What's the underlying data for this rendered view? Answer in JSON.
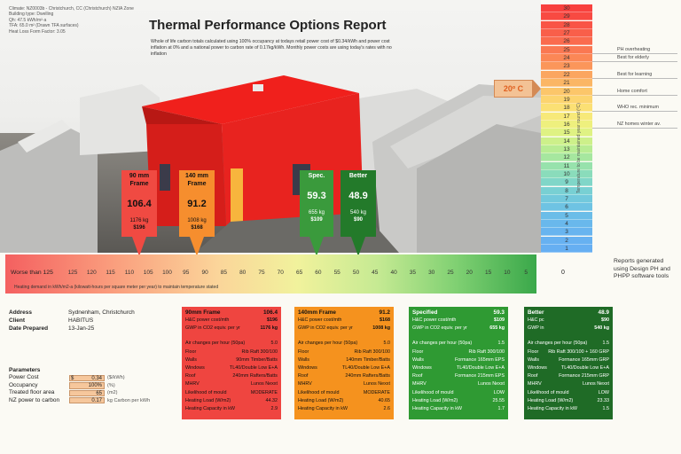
{
  "meta_lines": [
    "Climate: NZ0003b - Christchurch, CC (Christchurch) NZIA Zone",
    "Building type: Dwelling",
    "Qh: 47.5 kWh/m²·a",
    "TFA: 65.0 m² (Drawn TFA surfaces)",
    "Heat Loss Form Factor: 3.05"
  ],
  "title": "Thermal Performance Options Report",
  "subtitle": "Whole of life carbon totals calculated using 100% occupancy at todays retail power cost of $0.34/kWh and power cost inflation at 0% and a national power to carbon rate of 0.17kg/kWh. Monthly power costs are using today's rates with no inflation",
  "options": [
    {
      "name": "90 mm Frame",
      "value": "106.4",
      "carbon": "1176 kg",
      "cost": "$196",
      "color": "#f04a42",
      "arrow": "#f04a42",
      "bar_x": 110
    },
    {
      "name": "140 mm Frame",
      "value": "91.2",
      "carbon": "1008 kg",
      "cost": "$168",
      "color": "#f68e2e",
      "arrow": "#f68e2e",
      "bar_x": 95
    },
    {
      "name": "Spec.",
      "value": "59.3",
      "carbon": "655 kg",
      "cost": "$109",
      "color": "#3a9a3c",
      "arrow": "#3a9a3c",
      "bar_x": 60
    },
    {
      "name": "Better",
      "value": "48.9",
      "carbon": "540 kg",
      "cost": "$90",
      "color": "#237a2a",
      "arrow": "#237a2a",
      "bar_x": 50
    }
  ],
  "demand_bar": {
    "first_label": "Worse than 125",
    "ticks": [
      "125",
      "120",
      "115",
      "110",
      "105",
      "100",
      "95",
      "90",
      "85",
      "80",
      "75",
      "70",
      "65",
      "60",
      "55",
      "50",
      "45",
      "40",
      "35",
      "30",
      "25",
      "20",
      "15",
      "10",
      "5"
    ],
    "zero": "0",
    "caption": "Heating demand in kWh/m2-a (kilowatt-hours per square meter per year) to maintain temperature stated"
  },
  "temp_scale": {
    "values": [
      "30",
      "29",
      "28",
      "27",
      "26",
      "25",
      "24",
      "23",
      "22",
      "21",
      "20",
      "19",
      "18",
      "17",
      "16",
      "15",
      "14",
      "13",
      "12",
      "11",
      "10",
      "9",
      "8",
      "7",
      "6",
      "5",
      "4",
      "3",
      "2",
      "1"
    ],
    "benchmarks": [
      {
        "temp": "25",
        "label": "PH overheating"
      },
      {
        "temp": "24",
        "label": "Best for elderly"
      },
      {
        "temp": "22",
        "label": "Best for learning"
      },
      {
        "temp": "20",
        "label": "Home comfort"
      },
      {
        "temp": "18",
        "label": "WHO rec. minimum"
      },
      {
        "temp": "16",
        "label": "NZ homes winter av."
      }
    ],
    "target": "20º C",
    "axis_note": "Temperature to be maintained year round (ºC)"
  },
  "reports_note": "Reports generated using Design PH and PHPP software tools",
  "address": {
    "label_address": "Address",
    "address": "Sydnenham, Christchurch",
    "label_client": "Client",
    "client": "HABITUS",
    "label_date": "Date Prepared",
    "date": "13-Jan-25"
  },
  "parameters": {
    "heading": "Parameters",
    "rows": [
      {
        "label": "Power Cost",
        "currency": "$",
        "value": "0.34",
        "unit": "($/kWh)"
      },
      {
        "label": "Occupancy",
        "currency": "",
        "value": "100%",
        "unit": "(%)"
      },
      {
        "label": "Treated floor area",
        "currency": "",
        "value": "65",
        "unit": "(m2)"
      },
      {
        "label": "NZ power to carbon",
        "currency": "",
        "value": "0.17",
        "unit": "kg Carbon per kWh"
      }
    ]
  },
  "panels": [
    {
      "name": "90mm Frame",
      "score": "106.4",
      "color": "#ef4540",
      "text": "#111",
      "cost_label": "H&C power cost/mth",
      "cost": "$196",
      "gwp_label": "GWP in CO2 equiv. per yr",
      "gwp": "1176 kg",
      "rows": [
        [
          "Air changes per hour (50pa)",
          "5.0"
        ],
        [
          "Floor",
          "Rib Raft 300/100"
        ],
        [
          "Walls",
          "90mm Timber/Batts"
        ],
        [
          "Windows",
          "TL40/Double Low E+A"
        ],
        [
          "Roof",
          "240mm Rafters/Batts"
        ],
        [
          "MHRV",
          "Lunos Nexxt"
        ],
        [
          "Likelihood of mould",
          "MODERATE"
        ],
        [
          "Heating Load (W/m2)",
          "44.32"
        ],
        [
          "Heating Capacity in kW",
          "2.9"
        ]
      ]
    },
    {
      "name": "140mm Frame",
      "score": "91.2",
      "color": "#f5921e",
      "text": "#111",
      "cost_label": "H&C power cost/mth",
      "cost": "$168",
      "gwp_label": "GWP in CO2 equiv. per yr",
      "gwp": "1008 kg",
      "rows": [
        [
          "Air changes per hour (50pa)",
          "5.0"
        ],
        [
          "Floor",
          "Rib Raft 300/100"
        ],
        [
          "Walls",
          "140mm Timber/Batts"
        ],
        [
          "Windows",
          "TL40/Double Low E+A"
        ],
        [
          "Roof",
          "240mm Rafters/Batts"
        ],
        [
          "MHRV",
          "Lunos Nexxt"
        ],
        [
          "Likelihood of mould",
          "MODERATE"
        ],
        [
          "Heating Load (W/m2)",
          "40.65"
        ],
        [
          "Heating Capacity in kW",
          "2.6"
        ]
      ]
    },
    {
      "name": "Specified",
      "score": "59.3",
      "color": "#2f9a33",
      "text": "#fff",
      "cost_label": "H&C power cost/mth",
      "cost": "$109",
      "gwp_label": "GWP in CO2 equiv. per yr",
      "gwp": "655 kg",
      "rows": [
        [
          "Air changes per hour (50pa)",
          "1.5"
        ],
        [
          "Floor",
          "Rib Raft 300/100"
        ],
        [
          "Walls",
          "Formance 165mm EPS"
        ],
        [
          "Windows",
          "TL40/Double Low E+A"
        ],
        [
          "Roof",
          "Formance 215mm EPS"
        ],
        [
          "MHRV",
          "Lunos Nexxt"
        ],
        [
          "Likelihood of mould",
          "LOW"
        ],
        [
          "Heating Load (W/m2)",
          "25.55"
        ],
        [
          "Heating Capacity in kW",
          "1.7"
        ]
      ]
    },
    {
      "name": "Better",
      "score": "48.9",
      "color": "#1f6b26",
      "text": "#fff",
      "cost_label": "H&C pc",
      "cost": "$90",
      "gwp_label": "GWP in",
      "gwp": "540 kg",
      "rows": [
        [
          "Air changes per hour (50pa)",
          "1.5"
        ],
        [
          "Floor",
          "Rib Raft 300/100 + 160 GRP"
        ],
        [
          "Walls",
          "Formance 165mm GRP"
        ],
        [
          "Windows",
          "TL40/Double Low E+A"
        ],
        [
          "Roof",
          "Formance 215mm GRP"
        ],
        [
          "MHRV",
          "Lunos Nexxt"
        ],
        [
          "Likelihood of mould",
          "LOW"
        ],
        [
          "Heating Load (W/m2)",
          "23.33"
        ],
        [
          "Heating Capacity in kW",
          "1.5"
        ]
      ]
    }
  ]
}
